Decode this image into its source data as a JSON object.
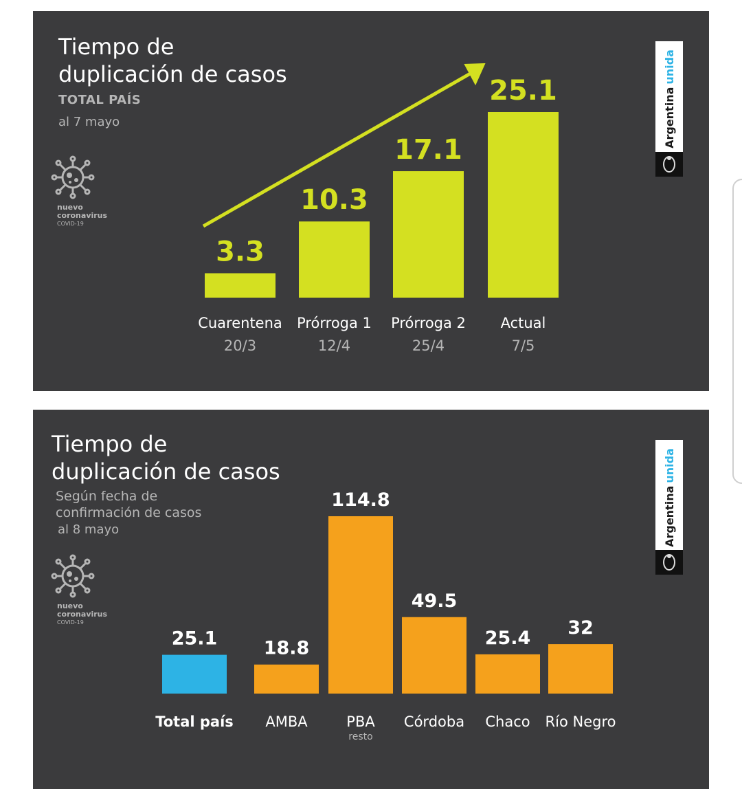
{
  "brand": {
    "name": "Argentina",
    "accent": "unida"
  },
  "covid_label": {
    "line1": "nuevo",
    "line2": "coronavirus",
    "line3": "COVID-19"
  },
  "panel1": {
    "title_line1": "Tiempo de",
    "title_line2": "duplicación de casos",
    "subtitle": "TOTAL PAÍS",
    "date": "al 7 mayo"
  },
  "panel2": {
    "title_line1": "Tiempo de",
    "title_line2": "duplicación de casos",
    "subtitle_line1": "Según fecha de",
    "subtitle_line2": "confirmación de casos",
    "date": "al 8 mayo"
  },
  "colors": {
    "background": "#3b3b3d",
    "lime": "#d4e021",
    "orange": "#f5a11c",
    "blue": "#2db3e5"
  },
  "chart_data": [
    {
      "type": "bar",
      "title": "Tiempo de duplicación de casos",
      "categories": [
        "Cuarentena",
        "Prórroga 1",
        "Prórroga 2",
        "Actual"
      ],
      "sublabels": [
        "20/3",
        "12/4",
        "25/4",
        "7/5"
      ],
      "values": [
        3.3,
        10.3,
        17.1,
        25.1
      ],
      "value_labels": [
        "3.3",
        "10.3",
        "17.1",
        "25.1"
      ],
      "ylim": [
        0,
        25.1
      ],
      "grid": false,
      "colors": [
        "#d4e021",
        "#d4e021",
        "#d4e021",
        "#d4e021"
      ],
      "annotations": [
        "rising arrow"
      ]
    },
    {
      "type": "bar",
      "title": "Tiempo de duplicación de casos",
      "categories": [
        "Total país",
        "AMBA",
        "PBA",
        "Córdoba",
        "Chaco",
        "Río Negro"
      ],
      "sublabels": [
        "",
        "",
        "resto",
        "",
        "",
        ""
      ],
      "values": [
        25.1,
        18.8,
        114.8,
        49.5,
        25.4,
        32
      ],
      "value_labels": [
        "25.1",
        "18.8",
        "114.8",
        "49.5",
        "25.4",
        "32"
      ],
      "ylim": [
        0,
        114.8
      ],
      "grid": false,
      "colors": [
        "#2db3e5",
        "#f5a11c",
        "#f5a11c",
        "#f5a11c",
        "#f5a11c",
        "#f5a11c"
      ]
    }
  ]
}
